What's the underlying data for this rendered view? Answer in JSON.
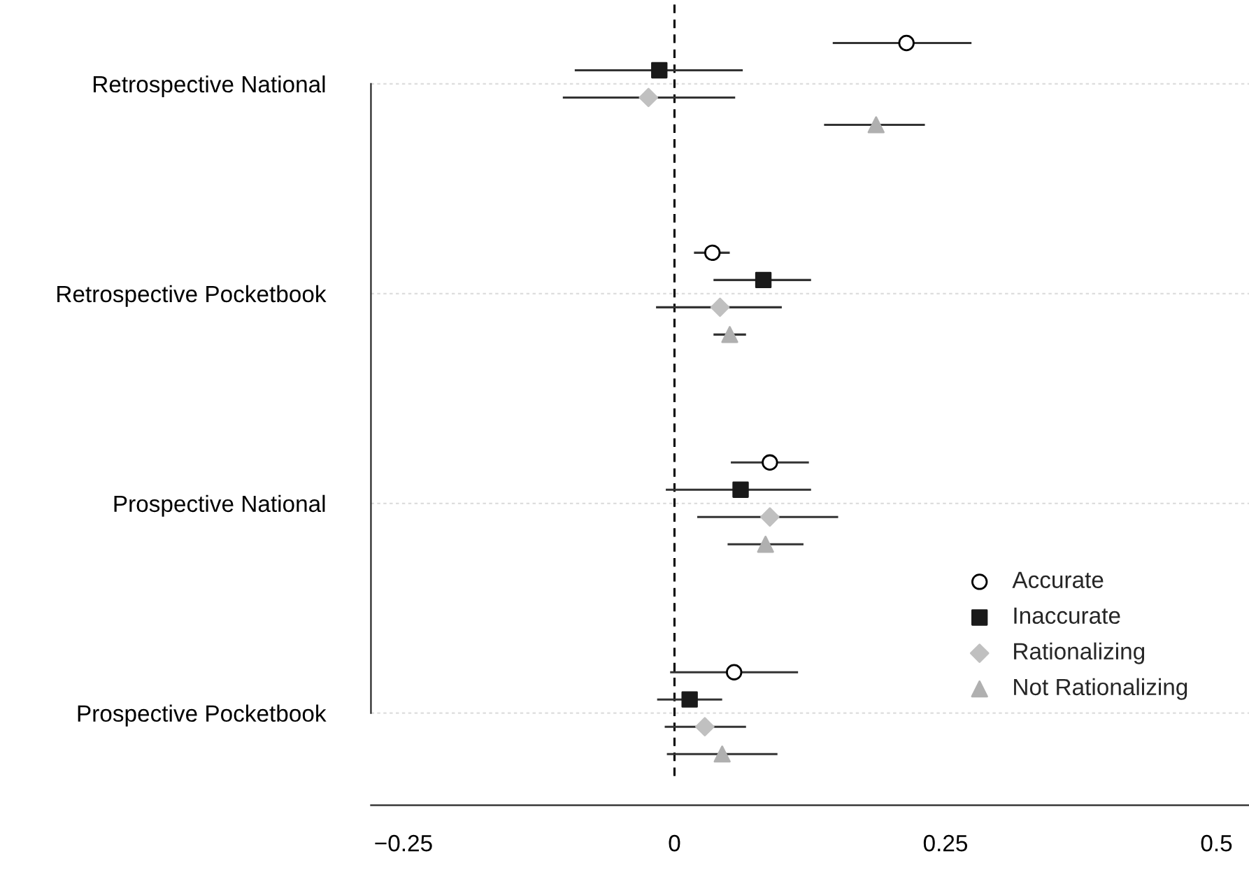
{
  "chart_data": {
    "type": "scatter",
    "orientation": "horizontal",
    "categories": [
      "Retrospective National",
      "Retrospective Pocketbook",
      "Prospective National",
      "Prospective Pocketbook"
    ],
    "series": [
      {
        "name": "Accurate",
        "color": "#ffffff",
        "marker": "circle",
        "values": [
          0.214,
          0.035,
          0.088,
          0.055
        ],
        "errors": [
          [
            0.146,
            0.274
          ],
          [
            0.018,
            0.051
          ],
          [
            0.052,
            0.124
          ],
          [
            -0.004,
            0.114
          ]
        ]
      },
      {
        "name": "Inaccurate",
        "color": "#1a1a1a",
        "marker": "square",
        "values": [
          -0.014,
          0.082,
          0.061,
          0.014
        ],
        "errors": [
          [
            -0.092,
            0.063
          ],
          [
            0.036,
            0.126
          ],
          [
            -0.008,
            0.126
          ],
          [
            -0.016,
            0.044
          ]
        ]
      },
      {
        "name": "Rationalizing",
        "color": "#c0c0c0",
        "marker": "diamond",
        "values": [
          -0.024,
          0.042,
          0.088,
          0.028
        ],
        "errors": [
          [
            -0.103,
            0.056
          ],
          [
            -0.017,
            0.099
          ],
          [
            0.021,
            0.151
          ],
          [
            -0.009,
            0.066
          ]
        ]
      },
      {
        "name": "Not Rationalizing",
        "color": "#b0b0b0",
        "marker": "triangle",
        "values": [
          0.186,
          0.051,
          0.084,
          0.044
        ],
        "errors": [
          [
            0.138,
            0.231
          ],
          [
            0.036,
            0.066
          ],
          [
            0.049,
            0.119
          ],
          [
            -0.007,
            0.095
          ]
        ]
      }
    ],
    "xlim": [
      -0.28,
      0.53
    ],
    "xticks": [
      {
        "value": -0.25,
        "label": "−0.25"
      },
      0,
      0.25,
      0.5
    ],
    "ref_lines": [
      {
        "axis": "x",
        "value": 0,
        "line_style": "dashed",
        "color": "#000000"
      }
    ],
    "grid": "y",
    "legend": "bottom right"
  }
}
